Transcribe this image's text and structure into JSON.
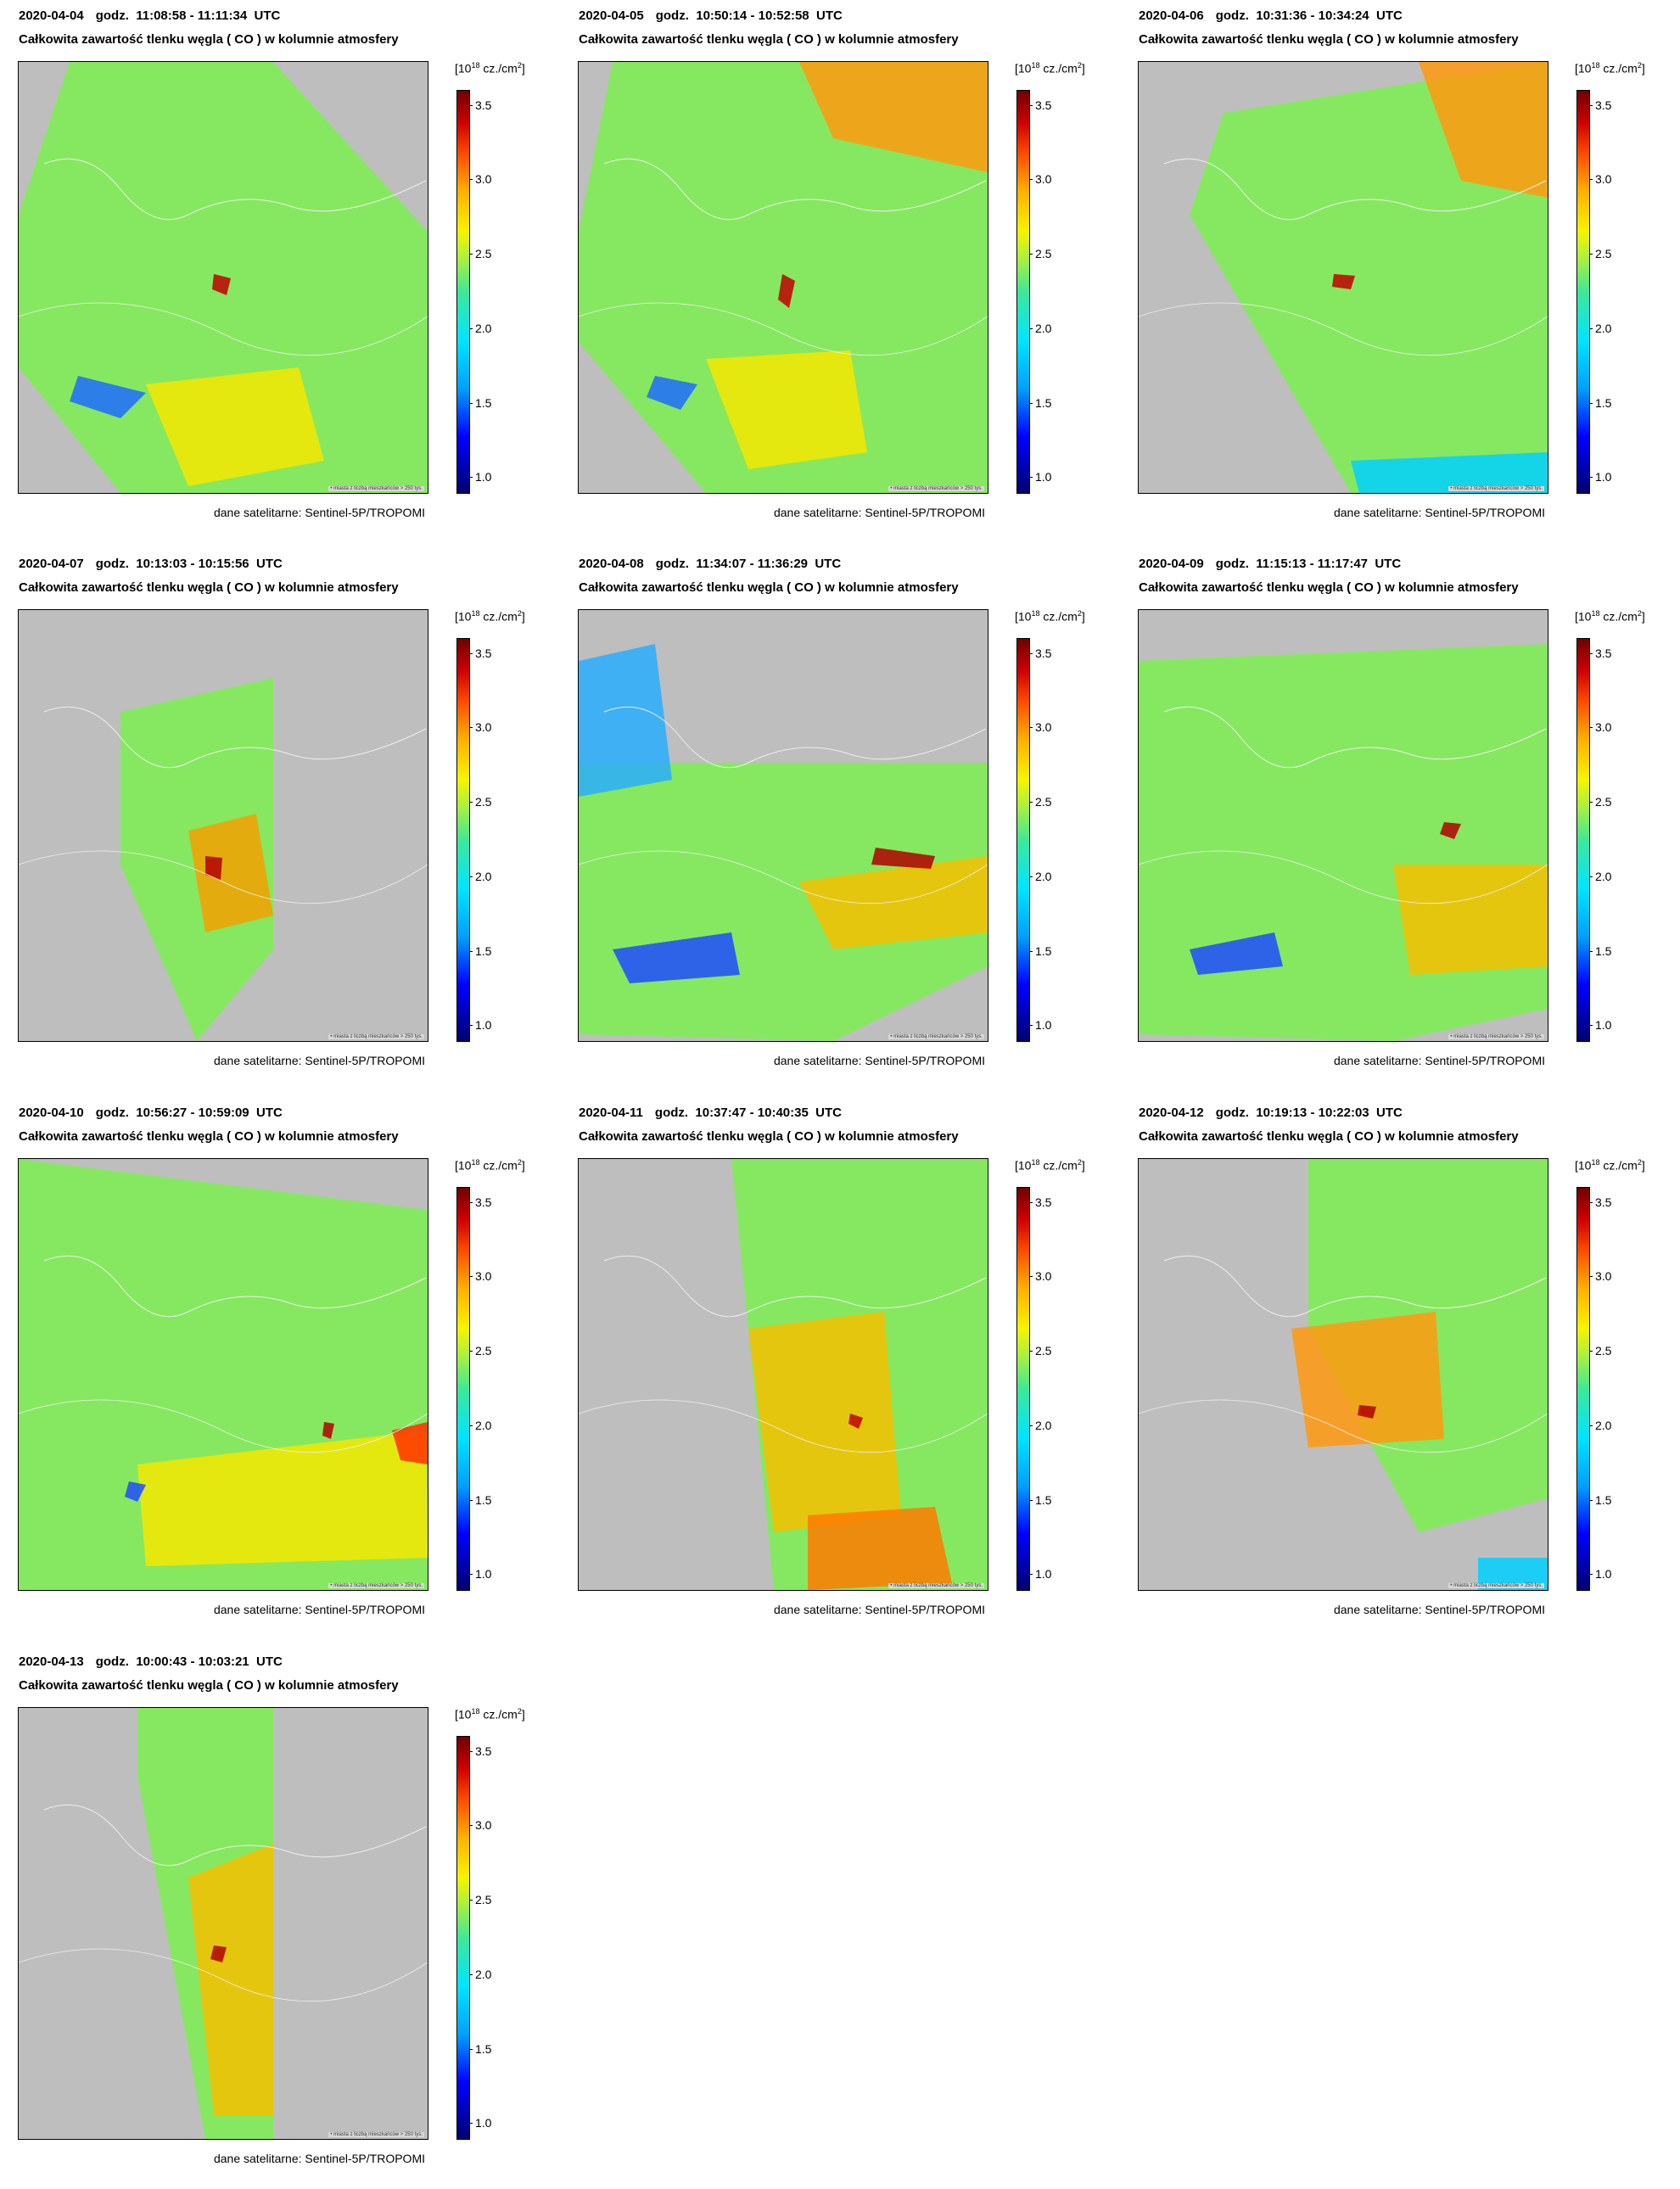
{
  "common": {
    "title": "Całkowita zawartość tlenku węgla ( CO ) w kolumnie atmosfery",
    "godz_label": "godz.",
    "utc_label": "UTC",
    "unit_base": "[10",
    "unit_exp": "18",
    "unit_rest": " cz./cm",
    "unit_sq": "2",
    "unit_close": "]",
    "credit": "dane satelitarne: Sentinel-5P/TROPOMI",
    "map_note": "• miasta z liczbą mieszkańców > 250 tys.",
    "colorbar_ticks": [
      "3.5",
      "3.0",
      "2.5",
      "2.0",
      "1.5",
      "1.0"
    ],
    "colorbar_range": [
      0.9,
      3.6
    ],
    "colors": {
      "background": "#bebebe",
      "low": "#000070",
      "mid": "#3ee89a",
      "high": "#700000"
    }
  },
  "panels": [
    {
      "date": "2020-04-04",
      "time": "11:08:58 - 11:11:34"
    },
    {
      "date": "2020-04-05",
      "time": "10:50:14 - 10:52:58"
    },
    {
      "date": "2020-04-06",
      "time": "10:31:36 - 10:34:24"
    },
    {
      "date": "2020-04-07",
      "time": "10:13:03 - 10:15:56"
    },
    {
      "date": "2020-04-08",
      "time": "11:34:07 - 11:36:29"
    },
    {
      "date": "2020-04-09",
      "time": "11:15:13 - 11:17:47"
    },
    {
      "date": "2020-04-10",
      "time": "10:56:27 - 10:59:09"
    },
    {
      "date": "2020-04-11",
      "time": "10:37:47 - 10:40:35"
    },
    {
      "date": "2020-04-12",
      "time": "10:19:13 - 10:22:03"
    },
    {
      "date": "2020-04-13",
      "time": "10:00:43 - 10:03:21"
    }
  ]
}
